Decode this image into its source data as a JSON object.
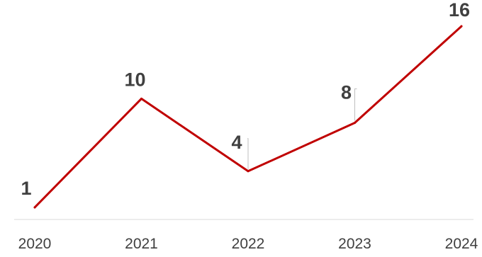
{
  "chart_data": {
    "type": "line",
    "categories": [
      "2020",
      "2021",
      "2022",
      "2023",
      "2024"
    ],
    "series": [
      {
        "values": [
          1,
          10,
          4,
          8,
          16
        ]
      }
    ],
    "data_labels": [
      "1",
      "10",
      "4",
      "8",
      "16"
    ],
    "title": "",
    "xlabel": "",
    "ylabel": "",
    "ylim": [
      0,
      17
    ],
    "grid": false,
    "legend": "none",
    "colors": {
      "line": "#C00000",
      "axis": "#D9D9D9",
      "text": "#404040",
      "leader": "#BFBFBF"
    }
  }
}
